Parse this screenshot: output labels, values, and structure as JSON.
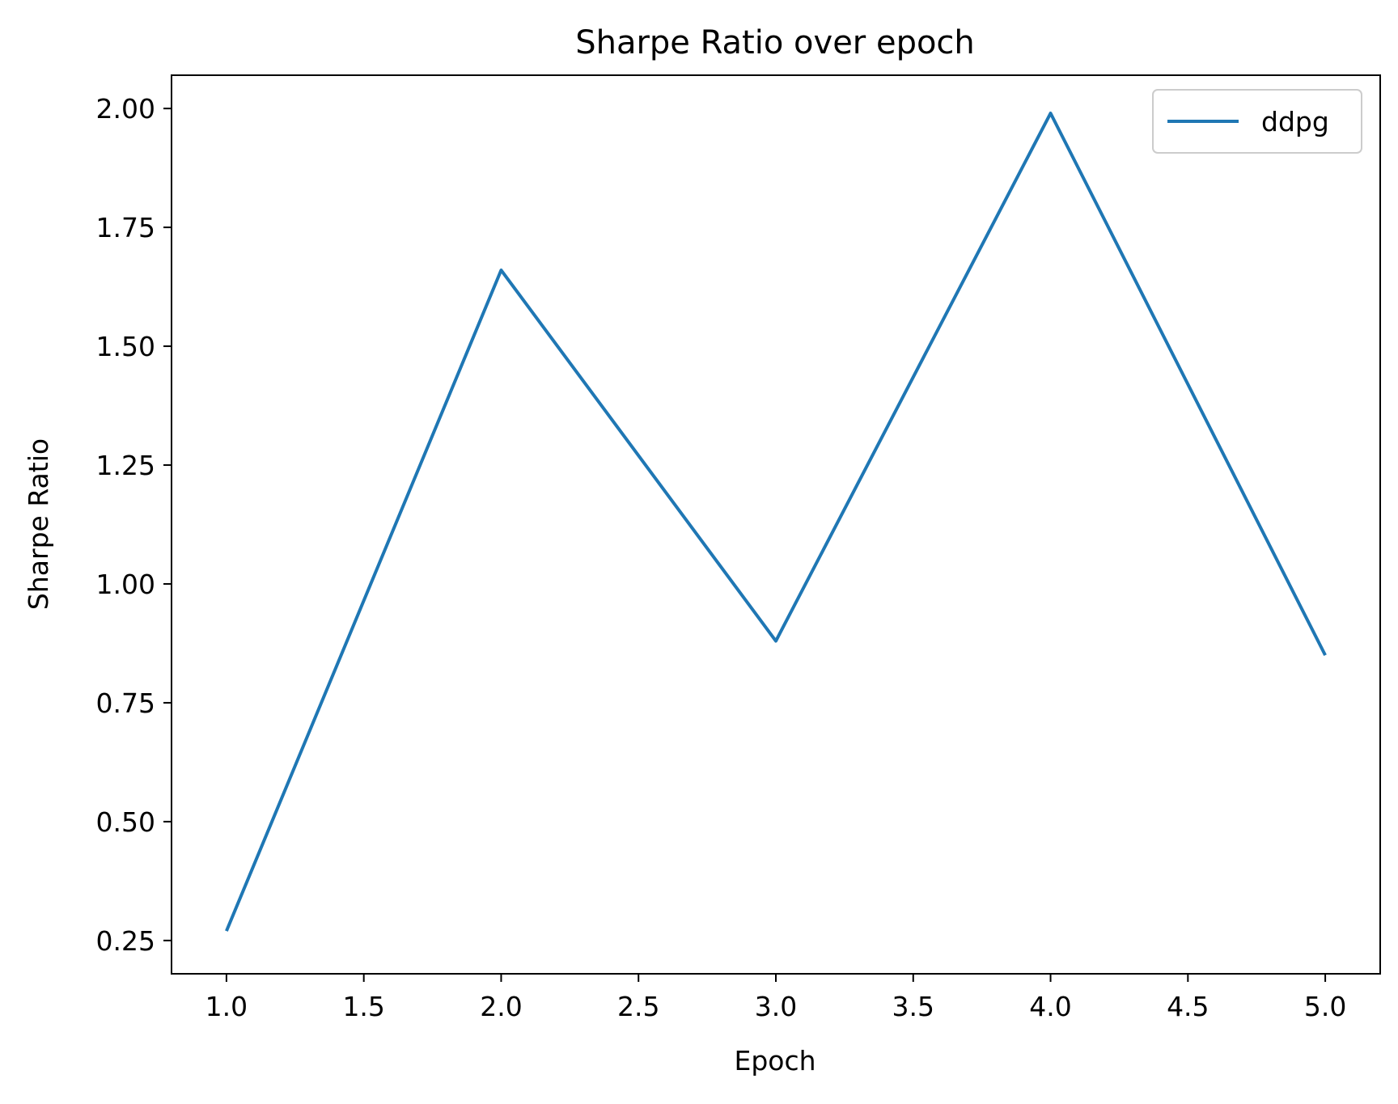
{
  "chart_data": {
    "type": "line",
    "title": "Sharpe Ratio over epoch",
    "xlabel": "Epoch",
    "ylabel": "Sharpe Ratio",
    "x": [
      1,
      2,
      3,
      4,
      5
    ],
    "series": [
      {
        "name": "ddpg",
        "color": "#1f77b4",
        "values": [
          0.27,
          1.66,
          0.88,
          1.99,
          0.85
        ]
      }
    ],
    "xlim": [
      0.8,
      5.2
    ],
    "ylim": [
      0.18,
      2.07
    ],
    "xticks": [
      1.0,
      1.5,
      2.0,
      2.5,
      3.0,
      3.5,
      4.0,
      4.5,
      5.0
    ],
    "xtick_labels": [
      "1.0",
      "1.5",
      "2.0",
      "2.5",
      "3.0",
      "3.5",
      "4.0",
      "4.5",
      "5.0"
    ],
    "yticks": [
      0.25,
      0.5,
      0.75,
      1.0,
      1.25,
      1.5,
      1.75,
      2.0
    ],
    "ytick_labels": [
      "0.25",
      "0.50",
      "0.75",
      "1.00",
      "1.25",
      "1.50",
      "1.75",
      "2.00"
    ],
    "grid": false,
    "legend_position": "top-right"
  }
}
